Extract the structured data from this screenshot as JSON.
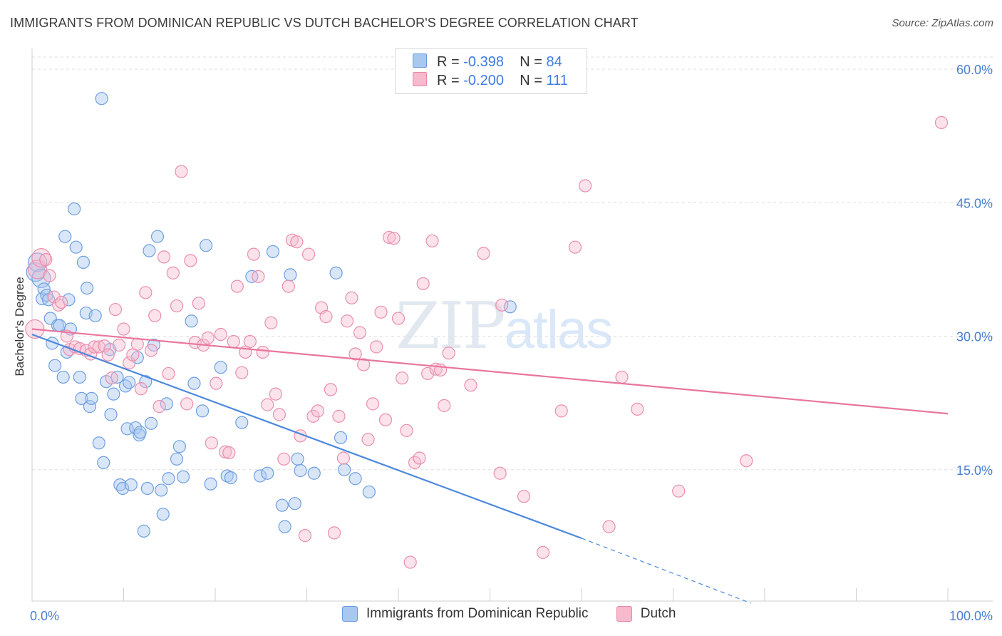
{
  "title": "IMMIGRANTS FROM DOMINICAN REPUBLIC VS DUTCH BACHELOR'S DEGREE CORRELATION CHART",
  "source": "Source: ZipAtlas.com",
  "watermark": {
    "zip": "ZIP",
    "atlas": "atlas"
  },
  "legend": {
    "r_label": "R =",
    "n_label": "N =",
    "series": [
      {
        "name": "Immigrants from Dominican Republic",
        "r": "-0.398",
        "n": "84",
        "color": "#a9c8f0",
        "edge": "#6a9be0"
      },
      {
        "name": "Dutch",
        "r": "-0.200",
        "n": "111",
        "color": "#f7b9cc",
        "edge": "#e889a8"
      }
    ]
  },
  "chart_data": {
    "type": "scatter",
    "title": "IMMIGRANTS FROM DOMINICAN REPUBLIC VS DUTCH BACHELOR'S DEGREE CORRELATION CHART",
    "xlabel": "",
    "ylabel": "Bachelor's Degree",
    "xlim": [
      0,
      100
    ],
    "ylim": [
      0,
      60
    ],
    "x_tick_labels": [
      "0.0%",
      "100.0%"
    ],
    "y_ticks": [
      15,
      30,
      45,
      60
    ],
    "y_tick_labels": [
      "15.0%",
      "30.0%",
      "45.0%",
      "60.0%"
    ],
    "grid": true,
    "series": [
      {
        "name": "Immigrants from Dominican Republic",
        "color": "#4a88dd",
        "points": [
          [
            0.4,
            37.2
          ],
          [
            0.6,
            38.3
          ],
          [
            1.0,
            36.5
          ],
          [
            1.1,
            34.2
          ],
          [
            1.3,
            35.3
          ],
          [
            1.6,
            34.6
          ],
          [
            1.8,
            34.1
          ],
          [
            2.0,
            32.0
          ],
          [
            2.2,
            29.2
          ],
          [
            2.5,
            26.7
          ],
          [
            2.8,
            31.2
          ],
          [
            3.0,
            31.2
          ],
          [
            3.4,
            25.4
          ],
          [
            3.6,
            41.2
          ],
          [
            3.8,
            28.2
          ],
          [
            4.0,
            34.1
          ],
          [
            4.2,
            30.8
          ],
          [
            4.6,
            44.3
          ],
          [
            4.8,
            40.0
          ],
          [
            5.2,
            25.4
          ],
          [
            5.4,
            23.0
          ],
          [
            5.6,
            38.3
          ],
          [
            5.9,
            32.6
          ],
          [
            6.0,
            35.4
          ],
          [
            6.3,
            22.1
          ],
          [
            6.5,
            23.0
          ],
          [
            6.9,
            32.3
          ],
          [
            7.3,
            18.0
          ],
          [
            7.6,
            56.7
          ],
          [
            7.8,
            15.8
          ],
          [
            8.1,
            24.9
          ],
          [
            8.5,
            28.5
          ],
          [
            8.6,
            21.2
          ],
          [
            8.9,
            23.5
          ],
          [
            9.3,
            25.4
          ],
          [
            9.6,
            13.3
          ],
          [
            9.9,
            12.9
          ],
          [
            10.2,
            24.4
          ],
          [
            10.4,
            19.6
          ],
          [
            10.6,
            24.8
          ],
          [
            10.8,
            13.3
          ],
          [
            11.3,
            19.7
          ],
          [
            11.5,
            27.6
          ],
          [
            11.7,
            18.9
          ],
          [
            11.8,
            19.2
          ],
          [
            12.2,
            8.1
          ],
          [
            12.4,
            24.9
          ],
          [
            12.6,
            12.9
          ],
          [
            12.8,
            39.6
          ],
          [
            13.0,
            20.2
          ],
          [
            13.3,
            29.0
          ],
          [
            13.7,
            41.2
          ],
          [
            14.1,
            12.7
          ],
          [
            14.3,
            10.0
          ],
          [
            14.7,
            22.4
          ],
          [
            14.9,
            14.0
          ],
          [
            15.8,
            16.2
          ],
          [
            16.1,
            17.6
          ],
          [
            16.5,
            14.2
          ],
          [
            17.4,
            31.7
          ],
          [
            17.7,
            24.7
          ],
          [
            18.6,
            21.6
          ],
          [
            19.0,
            40.2
          ],
          [
            19.5,
            13.4
          ],
          [
            20.6,
            26.5
          ],
          [
            21.3,
            14.3
          ],
          [
            21.7,
            14.1
          ],
          [
            22.9,
            20.3
          ],
          [
            24.0,
            36.7
          ],
          [
            24.9,
            14.3
          ],
          [
            25.7,
            14.6
          ],
          [
            26.3,
            39.5
          ],
          [
            27.3,
            11.0
          ],
          [
            27.6,
            8.6
          ],
          [
            28.2,
            36.9
          ],
          [
            28.7,
            11.2
          ],
          [
            29.0,
            16.2
          ],
          [
            29.3,
            14.9
          ],
          [
            30.8,
            14.6
          ],
          [
            33.2,
            37.1
          ],
          [
            33.7,
            18.6
          ],
          [
            34.1,
            15.0
          ],
          [
            35.3,
            14.0
          ],
          [
            36.8,
            12.5
          ],
          [
            52.2,
            33.3
          ]
        ],
        "trend": {
          "solid": [
            [
              0,
              30.2
            ],
            [
              60,
              7.3
            ]
          ],
          "dashed": [
            [
              60,
              7.3
            ],
            [
              78.5,
              0.0
            ]
          ]
        }
      },
      {
        "name": "Dutch",
        "color": "#e8769c",
        "points": [
          [
            0.3,
            30.8
          ],
          [
            0.6,
            37.5
          ],
          [
            1.0,
            38.8
          ],
          [
            1.5,
            38.6
          ],
          [
            1.9,
            36.8
          ],
          [
            2.4,
            34.4
          ],
          [
            2.9,
            33.5
          ],
          [
            3.2,
            33.8
          ],
          [
            3.8,
            30.0
          ],
          [
            4.1,
            28.5
          ],
          [
            4.7,
            28.8
          ],
          [
            5.2,
            28.6
          ],
          [
            5.9,
            28.4
          ],
          [
            6.4,
            28.0
          ],
          [
            6.8,
            28.8
          ],
          [
            7.3,
            28.8
          ],
          [
            7.9,
            28.9
          ],
          [
            8.3,
            27.9
          ],
          [
            8.7,
            25.3
          ],
          [
            9.1,
            33.0
          ],
          [
            9.5,
            29.0
          ],
          [
            10.0,
            30.8
          ],
          [
            10.6,
            27.0
          ],
          [
            11.0,
            27.9
          ],
          [
            11.5,
            29.1
          ],
          [
            11.9,
            24.1
          ],
          [
            12.4,
            34.9
          ],
          [
            13.0,
            28.4
          ],
          [
            13.4,
            32.3
          ],
          [
            13.9,
            22.1
          ],
          [
            14.4,
            38.9
          ],
          [
            14.9,
            25.8
          ],
          [
            15.4,
            37.1
          ],
          [
            15.8,
            33.4
          ],
          [
            16.3,
            48.5
          ],
          [
            16.9,
            22.4
          ],
          [
            17.3,
            38.5
          ],
          [
            17.8,
            29.3
          ],
          [
            18.2,
            33.7
          ],
          [
            18.7,
            29.0
          ],
          [
            19.2,
            29.8
          ],
          [
            19.6,
            18.0
          ],
          [
            20.1,
            24.7
          ],
          [
            20.6,
            30.2
          ],
          [
            21.1,
            17.0
          ],
          [
            21.5,
            16.9
          ],
          [
            22.0,
            29.4
          ],
          [
            22.4,
            35.6
          ],
          [
            22.9,
            25.9
          ],
          [
            23.3,
            28.2
          ],
          [
            23.8,
            29.4
          ],
          [
            24.2,
            39.2
          ],
          [
            24.7,
            36.7
          ],
          [
            25.2,
            28.2
          ],
          [
            25.7,
            22.3
          ],
          [
            26.1,
            31.5
          ],
          [
            26.6,
            23.5
          ],
          [
            27.0,
            21.2
          ],
          [
            27.5,
            16.2
          ],
          [
            28.0,
            35.6
          ],
          [
            28.4,
            40.8
          ],
          [
            28.9,
            40.6
          ],
          [
            29.3,
            18.8
          ],
          [
            29.8,
            7.6
          ],
          [
            30.2,
            39.2
          ],
          [
            30.7,
            21.0
          ],
          [
            31.2,
            21.6
          ],
          [
            31.6,
            33.2
          ],
          [
            32.1,
            32.2
          ],
          [
            32.6,
            24.0
          ],
          [
            33.0,
            7.9
          ],
          [
            33.5,
            21.0
          ],
          [
            34.0,
            16.3
          ],
          [
            34.4,
            31.7
          ],
          [
            34.9,
            34.3
          ],
          [
            35.3,
            28.0
          ],
          [
            35.8,
            30.4
          ],
          [
            36.2,
            26.8
          ],
          [
            36.7,
            18.4
          ],
          [
            37.2,
            22.4
          ],
          [
            37.6,
            28.8
          ],
          [
            38.1,
            32.7
          ],
          [
            38.6,
            20.6
          ],
          [
            39.0,
            41.1
          ],
          [
            39.5,
            41.0
          ],
          [
            40.0,
            32.0
          ],
          [
            40.4,
            25.3
          ],
          [
            40.9,
            19.4
          ],
          [
            41.3,
            4.6
          ],
          [
            41.8,
            15.8
          ],
          [
            42.3,
            16.3
          ],
          [
            42.7,
            35.9
          ],
          [
            43.2,
            25.8
          ],
          [
            43.7,
            40.7
          ],
          [
            44.1,
            26.3
          ],
          [
            44.6,
            26.2
          ],
          [
            45.0,
            22.2
          ],
          [
            45.5,
            28.1
          ],
          [
            47.9,
            24.5
          ],
          [
            49.3,
            39.3
          ],
          [
            51.1,
            14.6
          ],
          [
            51.3,
            33.5
          ],
          [
            53.7,
            12.0
          ],
          [
            55.8,
            5.7
          ],
          [
            57.8,
            21.6
          ],
          [
            59.3,
            40.0
          ],
          [
            60.4,
            46.9
          ],
          [
            63.0,
            8.6
          ],
          [
            64.4,
            25.4
          ],
          [
            66.1,
            21.8
          ],
          [
            70.6,
            12.6
          ],
          [
            78.0,
            16.0
          ],
          [
            99.3,
            54.0
          ]
        ],
        "trend": {
          "solid": [
            [
              0,
              30.8
            ],
            [
              100,
              21.3
            ]
          ]
        }
      }
    ]
  }
}
